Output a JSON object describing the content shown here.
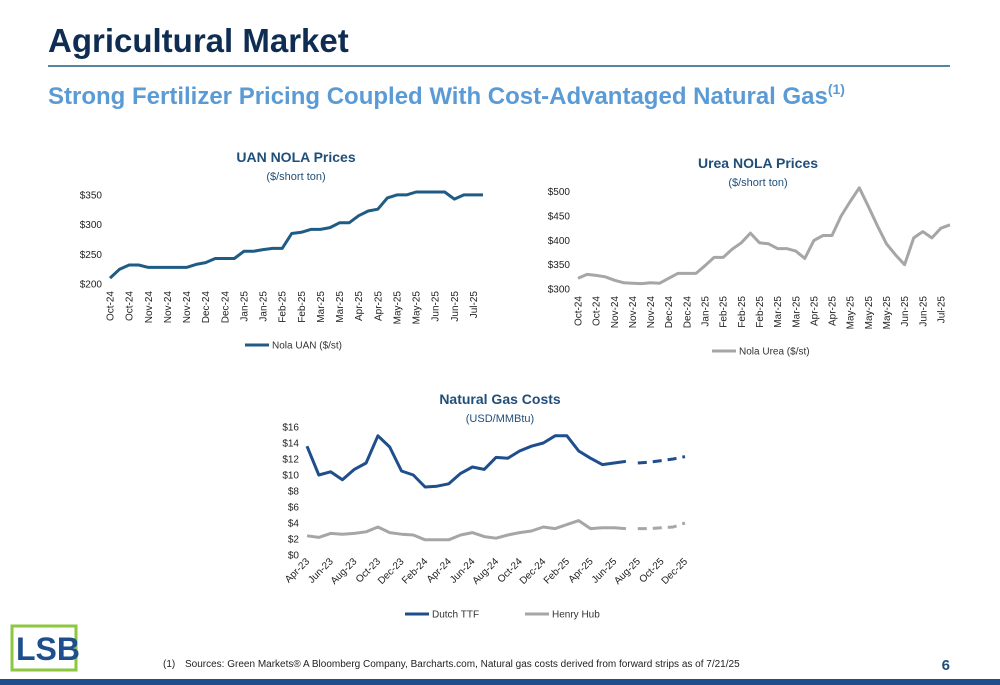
{
  "header": {
    "title": "Agricultural Market",
    "subtitle": "Strong Fertilizer Pricing Coupled With Cost-Advantaged Natural Gas",
    "subtitle_note": "(1)"
  },
  "footnote": {
    "marker": "(1)",
    "text": "Sources: Green Markets® A Bloomberg Company, Barcharts.com,  Natural gas costs derived from forward strips as of 7/21/25"
  },
  "logo": "LSB",
  "page_number": "6",
  "chart_data": [
    {
      "type": "line",
      "title": "UAN NOLA Prices",
      "subtitle": "($/short ton)",
      "categories": [
        "Oct-24",
        null,
        "Oct-24",
        null,
        "Nov-24",
        null,
        "Nov-24",
        null,
        "Nov-24",
        null,
        "Dec-24",
        null,
        "Dec-24",
        null,
        "Jan-25",
        null,
        "Jan-25",
        null,
        "Feb-25",
        null,
        "Feb-25",
        null,
        "Mar-25",
        null,
        "Mar-25",
        null,
        "Apr-25",
        null,
        "Apr-25",
        null,
        "May-25",
        null,
        "May-25",
        null,
        "Jun-25",
        null,
        "Jun-25",
        null,
        "Jul-25",
        null
      ],
      "series": [
        {
          "name": "Nola UAN ($/st)",
          "color": "#1f5c85",
          "values": [
            210,
            225,
            232,
            232,
            228,
            228,
            228,
            228,
            228,
            233,
            236,
            243,
            243,
            243,
            255,
            255,
            258,
            260,
            260,
            285,
            287,
            292,
            292,
            295,
            303,
            303,
            315,
            323,
            326,
            345,
            350,
            350,
            355,
            355,
            355,
            355,
            343,
            350,
            350,
            350
          ]
        }
      ],
      "ylim": [
        200,
        360
      ],
      "yticks": [
        {
          "value": 200,
          "label": "$200"
        },
        {
          "value": 250,
          "label": "$250"
        },
        {
          "value": 300,
          "label": "$300"
        },
        {
          "value": 350,
          "label": "$350"
        }
      ],
      "legend": "bottom"
    },
    {
      "type": "line",
      "title": "Urea NOLA Prices",
      "subtitle": "($/short ton)",
      "categories": [
        "Oct-24",
        null,
        "Oct-24",
        null,
        "Nov-24",
        null,
        "Nov-24",
        null,
        "Nov-24",
        null,
        "Dec-24",
        null,
        "Dec-24",
        null,
        "Jan-25",
        null,
        "Feb-25",
        null,
        "Feb-25",
        null,
        "Feb-25",
        null,
        "Mar-25",
        null,
        "Mar-25",
        null,
        "Apr-25",
        null,
        "Apr-25",
        null,
        "May-25",
        null,
        "May-25",
        null,
        "May-25",
        null,
        "Jun-25",
        null,
        "Jun-25",
        null,
        "Jul-25",
        null
      ],
      "series": [
        {
          "name": "Nola Urea ($/st)",
          "color": "#a6a6a6",
          "values": [
            322,
            330,
            328,
            325,
            318,
            313,
            312,
            311,
            313,
            312,
            322,
            332,
            332,
            332,
            348,
            365,
            365,
            382,
            395,
            415,
            395,
            393,
            383,
            383,
            378,
            363,
            400,
            410,
            410,
            450,
            480,
            508,
            470,
            430,
            393,
            370,
            350,
            405,
            418,
            405,
            425,
            432
          ]
        }
      ],
      "ylim": [
        300,
        520
      ],
      "yticks": [
        {
          "value": 300,
          "label": "$300"
        },
        {
          "value": 350,
          "label": "$350"
        },
        {
          "value": 400,
          "label": "$400"
        },
        {
          "value": 450,
          "label": "$450"
        },
        {
          "value": 500,
          "label": "$500"
        }
      ],
      "legend": "bottom"
    },
    {
      "type": "line",
      "title": "Natural Gas Costs",
      "subtitle": "(USD/MMBtu)",
      "categories": [
        "Apr-23",
        null,
        "Jun-23",
        null,
        "Aug-23",
        null,
        "Oct-23",
        null,
        "Dec-23",
        null,
        "Feb-24",
        null,
        "Apr-24",
        null,
        "Jun-24",
        null,
        "Aug-24",
        null,
        "Oct-24",
        null,
        "Dec-24",
        null,
        "Feb-25",
        null,
        "Apr-25",
        null,
        "Jun-25",
        null,
        "Aug-25",
        null,
        "Oct-25",
        null,
        "Dec-25"
      ],
      "series": [
        {
          "name": "Dutch TTF",
          "color": "#1f4e8c",
          "values": [
            13.6,
            10.0,
            10.4,
            9.4,
            10.7,
            11.5,
            14.9,
            13.5,
            10.5,
            10.0,
            8.5,
            8.6,
            8.9,
            10.2,
            11.0,
            10.7,
            12.2,
            12.1,
            13.0,
            13.6,
            14.0,
            14.9,
            14.9,
            13.0,
            12.1,
            11.3,
            11.5,
            11.7,
            null,
            null,
            null,
            null,
            null
          ],
          "forecast_values": [
            null,
            null,
            null,
            null,
            null,
            null,
            null,
            null,
            null,
            null,
            null,
            null,
            null,
            null,
            null,
            null,
            null,
            null,
            null,
            null,
            null,
            null,
            null,
            null,
            null,
            null,
            null,
            null,
            11.5,
            11.6,
            11.8,
            12.0,
            12.3
          ]
        },
        {
          "name": "Henry Hub",
          "color": "#a6a6a6",
          "values": [
            2.4,
            2.2,
            2.7,
            2.6,
            2.7,
            2.9,
            3.5,
            2.8,
            2.6,
            2.5,
            1.9,
            1.9,
            1.9,
            2.5,
            2.8,
            2.3,
            2.1,
            2.5,
            2.8,
            3.0,
            3.5,
            3.3,
            3.8,
            4.3,
            3.3,
            3.4,
            3.4,
            3.3,
            null,
            null,
            null,
            null,
            null
          ],
          "forecast_values": [
            null,
            null,
            null,
            null,
            null,
            null,
            null,
            null,
            null,
            null,
            null,
            null,
            null,
            null,
            null,
            null,
            null,
            null,
            null,
            null,
            null,
            null,
            null,
            null,
            null,
            null,
            null,
            null,
            3.3,
            3.3,
            3.4,
            3.5,
            4.0
          ]
        }
      ],
      "ylim": [
        0,
        16
      ],
      "yticks": [
        {
          "value": 0,
          "label": "$0"
        },
        {
          "value": 2,
          "label": "$2"
        },
        {
          "value": 4,
          "label": "$4"
        },
        {
          "value": 6,
          "label": "$6"
        },
        {
          "value": 8,
          "label": "$8"
        },
        {
          "value": 10,
          "label": "$10"
        },
        {
          "value": 12,
          "label": "$12"
        },
        {
          "value": 14,
          "label": "$14"
        },
        {
          "value": 16,
          "label": "$16"
        }
      ],
      "legend": "bottom"
    }
  ]
}
